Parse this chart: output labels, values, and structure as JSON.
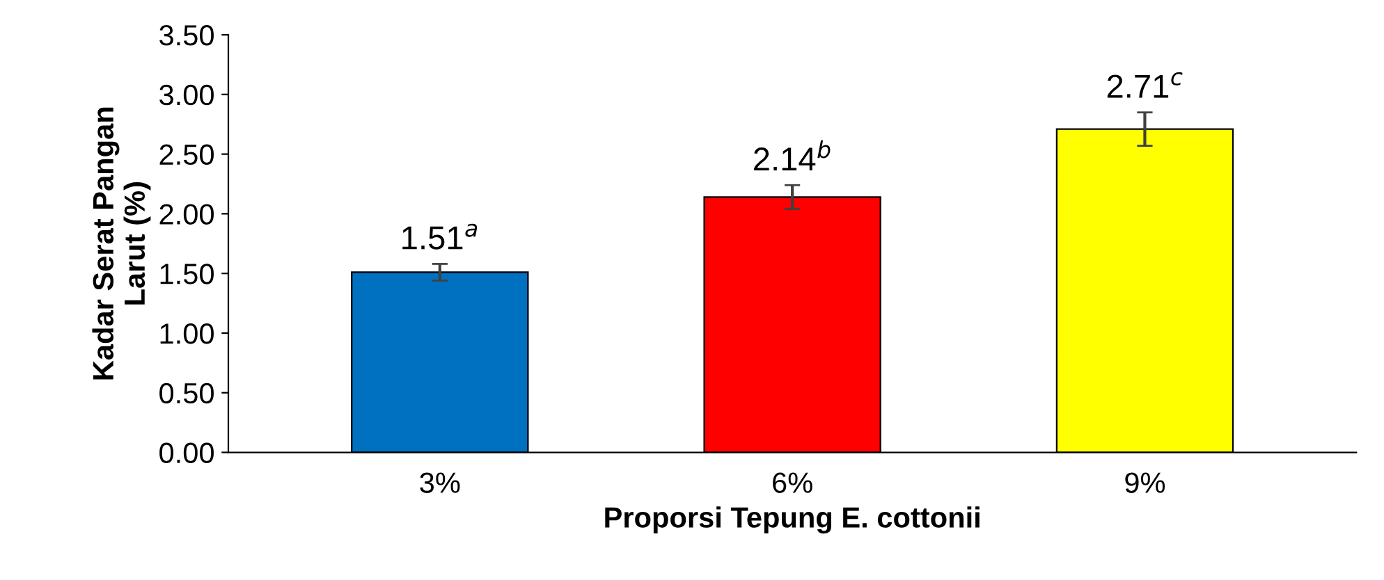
{
  "chart_data": {
    "type": "bar",
    "xlabel": "Proporsi Tepung E. cottonii",
    "ylabel": "Kadar Serat Pangan\nLarut (%)",
    "categories": [
      "3%",
      "6%",
      "9%"
    ],
    "values": [
      1.51,
      2.14,
      2.71
    ],
    "colors": [
      "#0070c0",
      "#ff0000",
      "#ffff00"
    ],
    "errors": [
      0.07,
      0.1,
      0.14
    ],
    "value_labels": [
      "1.51$^{a}$",
      "2.14$^{b}$",
      "2.71$^{c}$"
    ],
    "ylim": [
      0,
      3.5
    ],
    "yticks": [
      {
        "value": 0,
        "label": "0.00"
      },
      {
        "value": 0.5,
        "label": "0.50"
      },
      {
        "value": 1,
        "label": "1.00"
      },
      {
        "value": 1.5,
        "label": "1.50"
      },
      {
        "value": 2,
        "label": "2.00"
      },
      {
        "value": 2.5,
        "label": "2.50"
      },
      {
        "value": 3,
        "label": "3.00"
      },
      {
        "value": 3.5,
        "label": "3.50"
      }
    ],
    "grid": false,
    "legend": false
  }
}
